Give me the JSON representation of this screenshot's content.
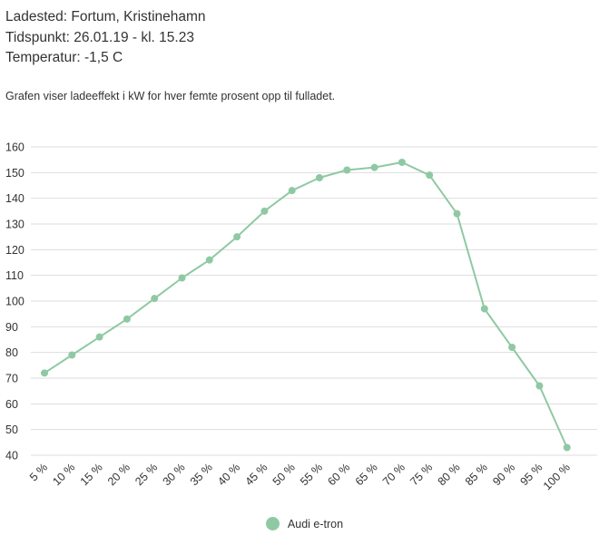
{
  "header": {
    "location": "Ladested: Fortum, Kristinehamn",
    "timestamp": "Tidspunkt: 26.01.19 - kl. 15.23",
    "temperature": "Temperatur: -1,5 C"
  },
  "description": "Grafen viser ladeeffekt i kW for hver femte prosent opp til fulladet.",
  "colors": {
    "series": "#8fc9a3",
    "grid": "#dddddd",
    "text": "#333333"
  },
  "chart_data": {
    "type": "line",
    "title": "",
    "xlabel": "",
    "ylabel": "",
    "categories": [
      "5 %",
      "10 %",
      "15 %",
      "20 %",
      "25 %",
      "30 %",
      "35 %",
      "40 %",
      "45 %",
      "50 %",
      "55 %",
      "60 %",
      "65 %",
      "70 %",
      "75 %",
      "80 %",
      "85 %",
      "90 %",
      "95 %",
      "100 %"
    ],
    "y_ticks": [
      40,
      50,
      60,
      70,
      80,
      90,
      100,
      110,
      120,
      130,
      140,
      150,
      160
    ],
    "y_tick_labels": [
      "40",
      "50",
      "60",
      "70",
      "80",
      "90",
      "100",
      "110",
      "120",
      "130",
      "140",
      "150",
      "160"
    ],
    "ylim": [
      40,
      160
    ],
    "grid": true,
    "legend_position": "bottom-center",
    "series": [
      {
        "name": "Audi e-tron",
        "color": "#8fc9a3",
        "values": [
          72,
          79,
          86,
          93,
          101,
          109,
          116,
          125,
          135,
          143,
          148,
          151,
          152,
          154,
          149,
          134,
          97,
          82,
          67,
          43
        ]
      }
    ]
  }
}
